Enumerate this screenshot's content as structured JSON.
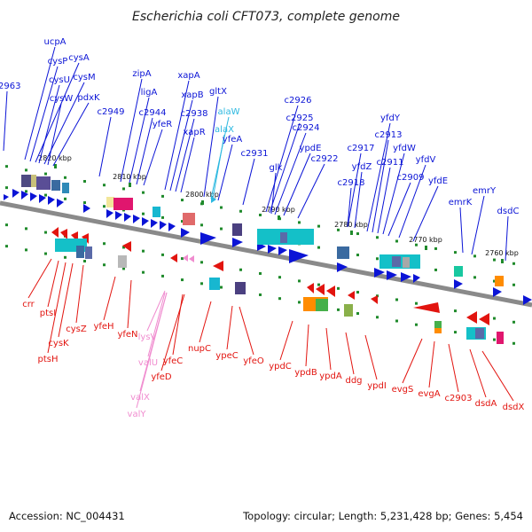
{
  "title": "Escherichia coli CFT073, complete genome",
  "footer": {
    "accession": "Accession: NC_004431",
    "summary": "Topology: circular; Length: 5,231,428 bp; Genes: 5,454"
  },
  "colors": {
    "forward": "#0b14d6",
    "reverse": "#e2140f",
    "forward_pseudo": "#2bb8e0",
    "reverse_pseudo": "#f08ccf",
    "backbone": "#8a8a8a",
    "tick": "#1f8a2b"
  },
  "kbp_markers": [
    "2820 kbp",
    "2810 kbp",
    "2800 kbp",
    "2790 kbp",
    "2780 kbp",
    "2770 kbp",
    "2760 kbp"
  ],
  "forward_labels": [
    "c2963",
    "ucpA",
    "cysP",
    "cysA",
    "cysU",
    "cysM",
    "cysW",
    "pdxK",
    "c2949",
    "zipA",
    "ligA",
    "c2944",
    "yfeR",
    "xapA",
    "xapB",
    "c2938",
    "xapR",
    "gltX",
    "alaW",
    "alaX",
    "yfeA",
    "c2931",
    "c2926",
    "c2925",
    "glk",
    "c2924",
    "ypdE",
    "c2922",
    "c2917",
    "c2918",
    "yfdZ",
    "yfdY",
    "c2913",
    "c2911",
    "yfdW",
    "c2909",
    "yfdV",
    "yfdE",
    "emrK",
    "emrY",
    "dsdC"
  ],
  "reverse_labels": [
    "crr",
    "ptsI",
    "ptsH",
    "cysK",
    "cysZ",
    "yfeH",
    "yfeN",
    "lysV",
    "valU",
    "yfeC",
    "yfeD",
    "valX",
    "valY",
    "nupC",
    "ypeC",
    "yfeO",
    "ypdC",
    "ypdB",
    "ypdA",
    "ddg",
    "ypdI",
    "evgS",
    "evgA",
    "c2903",
    "dsdA",
    "dsdX"
  ]
}
